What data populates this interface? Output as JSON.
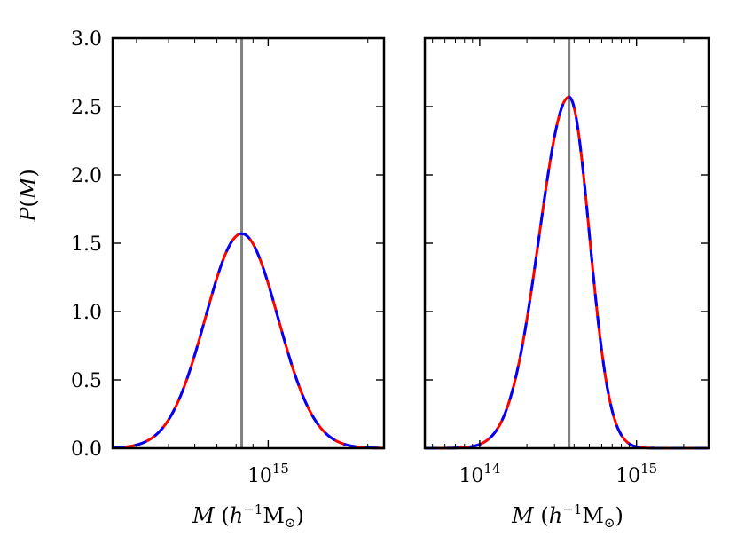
{
  "chart_data": [
    {
      "type": "line",
      "panel": "left",
      "xlabel_parts": {
        "var": "M",
        "open": " (",
        "unit_h": "h",
        "exp": "−1",
        "unit_M": "M",
        "sub": "⊙",
        "close": ")"
      },
      "ylabel_parts": {
        "func": "P",
        "open": "(",
        "var": "M",
        "close": ")"
      },
      "xscale": "log",
      "xlim_log10": [
        14.53,
        15.35
      ],
      "ylim": [
        0.0,
        3.0
      ],
      "y_ticks": [
        0.0,
        0.5,
        1.0,
        1.5,
        2.0,
        2.5,
        3.0
      ],
      "y_tick_labels": [
        "0.0",
        "0.5",
        "1.0",
        "1.5",
        "2.0",
        "2.5",
        "3.0"
      ],
      "x_tick_labels": [
        {
          "log10": 15,
          "base": "10",
          "exp": "15"
        }
      ],
      "vline_log10": 14.92,
      "series": [
        {
          "name": "solid red",
          "color": "#ff0000",
          "style": "solid",
          "model": "gaussian",
          "mu_log10": 14.92,
          "sigma_log10": 0.11,
          "peak": 1.57
        },
        {
          "name": "dashed blue",
          "color": "#0000ff",
          "style": "dashed",
          "model": "gaussian",
          "mu_log10": 14.92,
          "sigma_log10": 0.11,
          "peak": 1.57
        }
      ],
      "vline_color": "#808080"
    },
    {
      "type": "line",
      "panel": "right",
      "xlabel_parts": {
        "var": "M",
        "open": " (",
        "unit_h": "h",
        "exp": "−1",
        "unit_M": "M",
        "sub": "⊙",
        "close": ")"
      },
      "xscale": "log",
      "xlim_log10": [
        13.65,
        15.46
      ],
      "ylim": [
        0.0,
        3.0
      ],
      "y_ticks": [
        0.0,
        0.5,
        1.0,
        1.5,
        2.0,
        2.5,
        3.0
      ],
      "x_tick_labels": [
        {
          "log10": 14,
          "base": "10",
          "exp": "14"
        },
        {
          "log10": 15,
          "base": "10",
          "exp": "15"
        }
      ],
      "vline_log10": 14.57,
      "series": [
        {
          "name": "solid red",
          "color": "#ff0000",
          "style": "solid",
          "model": "skewed",
          "mu_log10": 14.57,
          "sigma_left": 0.19,
          "sigma_right": 0.13,
          "peak": 2.57
        },
        {
          "name": "dashed blue",
          "color": "#0000ff",
          "style": "dashed",
          "model": "skewed",
          "mu_log10": 14.57,
          "sigma_left": 0.19,
          "sigma_right": 0.13,
          "peak": 2.57
        }
      ],
      "vline_color": "#808080"
    }
  ]
}
